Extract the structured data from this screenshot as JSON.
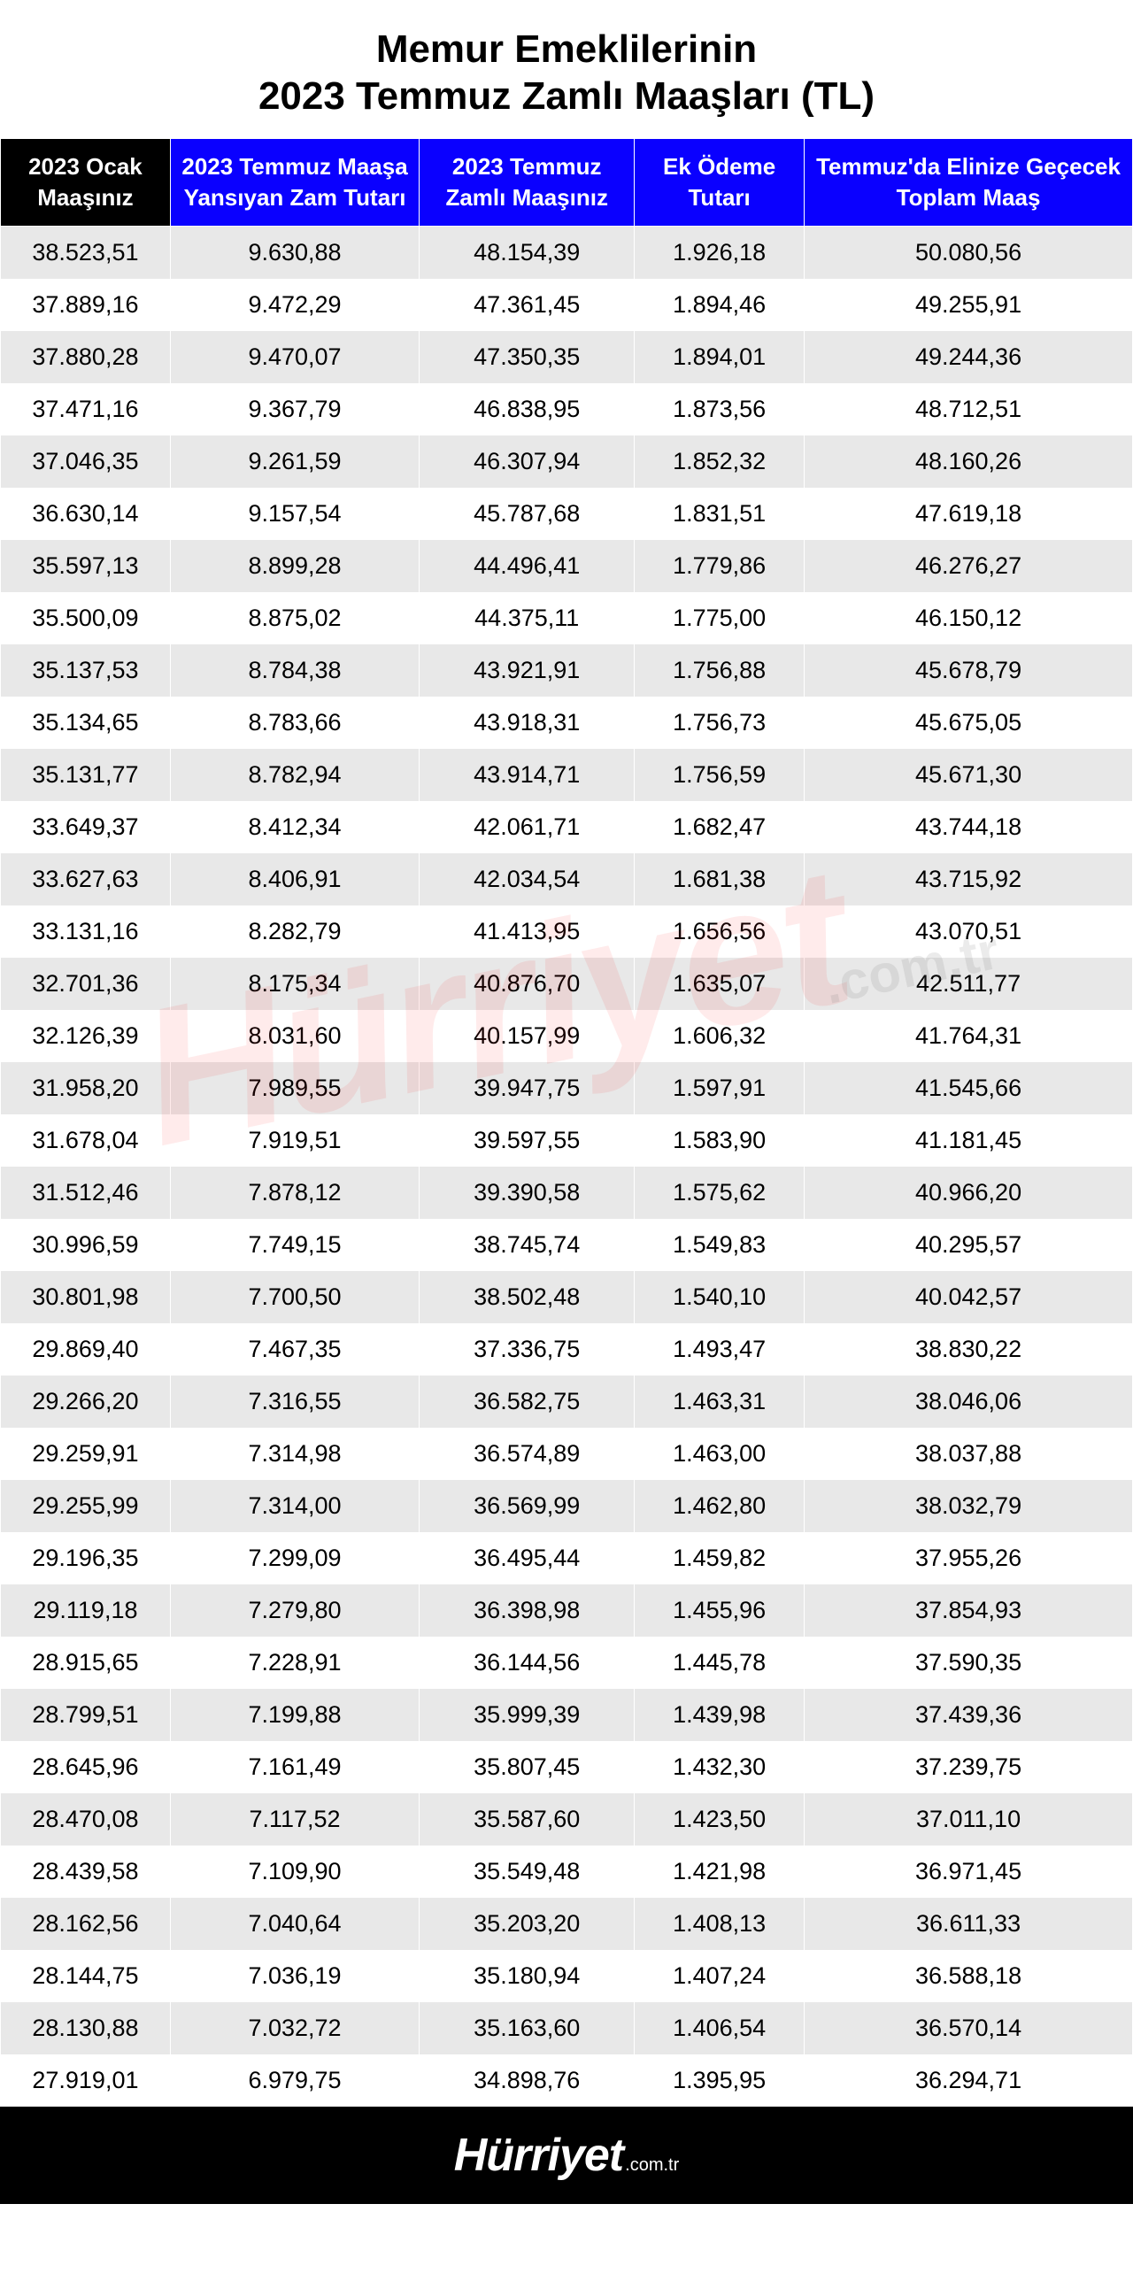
{
  "title_line1": "Memur Emeklilerinin",
  "title_line2": "2023 Temmuz Zamlı Maaşları (TL)",
  "watermark_main": "Hürriyet",
  "watermark_sub": ".com.tr",
  "footer_main": "Hürriyet",
  "footer_sub": ".com.tr",
  "colors": {
    "header_first_bg": "#000000",
    "header_rest_bg": "#0a00ff",
    "header_text": "#ffffff",
    "row_odd_bg": "#e8e8e8",
    "row_even_bg": "#ffffff",
    "text": "#000000",
    "footer_bg": "#000000",
    "footer_text": "#ffffff",
    "watermark": "rgba(255,0,0,0.08)"
  },
  "columns": [
    "2023 Ocak Maaşınız",
    "2023 Temmuz Maaşa Yansıyan Zam Tutarı",
    "2023 Temmuz Zamlı Maaşınız",
    "Ek Ödeme Tutarı",
    "Temmuz'da Elinize Geçecek Toplam Maaş"
  ],
  "rows": [
    [
      "38.523,51",
      "9.630,88",
      "48.154,39",
      "1.926,18",
      "50.080,56"
    ],
    [
      "37.889,16",
      "9.472,29",
      "47.361,45",
      "1.894,46",
      "49.255,91"
    ],
    [
      "37.880,28",
      "9.470,07",
      "47.350,35",
      "1.894,01",
      "49.244,36"
    ],
    [
      "37.471,16",
      "9.367,79",
      "46.838,95",
      "1.873,56",
      "48.712,51"
    ],
    [
      "37.046,35",
      "9.261,59",
      "46.307,94",
      "1.852,32",
      "48.160,26"
    ],
    [
      "36.630,14",
      "9.157,54",
      "45.787,68",
      "1.831,51",
      "47.619,18"
    ],
    [
      "35.597,13",
      "8.899,28",
      "44.496,41",
      "1.779,86",
      "46.276,27"
    ],
    [
      "35.500,09",
      "8.875,02",
      "44.375,11",
      "1.775,00",
      "46.150,12"
    ],
    [
      "35.137,53",
      "8.784,38",
      "43.921,91",
      "1.756,88",
      "45.678,79"
    ],
    [
      "35.134,65",
      "8.783,66",
      "43.918,31",
      "1.756,73",
      "45.675,05"
    ],
    [
      "35.131,77",
      "8.782,94",
      "43.914,71",
      "1.756,59",
      "45.671,30"
    ],
    [
      "33.649,37",
      "8.412,34",
      "42.061,71",
      "1.682,47",
      "43.744,18"
    ],
    [
      "33.627,63",
      "8.406,91",
      "42.034,54",
      "1.681,38",
      "43.715,92"
    ],
    [
      "33.131,16",
      "8.282,79",
      "41.413,95",
      "1.656,56",
      "43.070,51"
    ],
    [
      "32.701,36",
      "8.175,34",
      "40.876,70",
      "1.635,07",
      "42.511,77"
    ],
    [
      "32.126,39",
      "8.031,60",
      "40.157,99",
      "1.606,32",
      "41.764,31"
    ],
    [
      "31.958,20",
      "7.989,55",
      "39.947,75",
      "1.597,91",
      "41.545,66"
    ],
    [
      "31.678,04",
      "7.919,51",
      "39.597,55",
      "1.583,90",
      "41.181,45"
    ],
    [
      "31.512,46",
      "7.878,12",
      "39.390,58",
      "1.575,62",
      "40.966,20"
    ],
    [
      "30.996,59",
      "7.749,15",
      "38.745,74",
      "1.549,83",
      "40.295,57"
    ],
    [
      "30.801,98",
      "7.700,50",
      "38.502,48",
      "1.540,10",
      "40.042,57"
    ],
    [
      "29.869,40",
      "7.467,35",
      "37.336,75",
      "1.493,47",
      "38.830,22"
    ],
    [
      "29.266,20",
      "7.316,55",
      "36.582,75",
      "1.463,31",
      "38.046,06"
    ],
    [
      "29.259,91",
      "7.314,98",
      "36.574,89",
      "1.463,00",
      "38.037,88"
    ],
    [
      "29.255,99",
      "7.314,00",
      "36.569,99",
      "1.462,80",
      "38.032,79"
    ],
    [
      "29.196,35",
      "7.299,09",
      "36.495,44",
      "1.459,82",
      "37.955,26"
    ],
    [
      "29.119,18",
      "7.279,80",
      "36.398,98",
      "1.455,96",
      "37.854,93"
    ],
    [
      "28.915,65",
      "7.228,91",
      "36.144,56",
      "1.445,78",
      "37.590,35"
    ],
    [
      "28.799,51",
      "7.199,88",
      "35.999,39",
      "1.439,98",
      "37.439,36"
    ],
    [
      "28.645,96",
      "7.161,49",
      "35.807,45",
      "1.432,30",
      "37.239,75"
    ],
    [
      "28.470,08",
      "7.117,52",
      "35.587,60",
      "1.423,50",
      "37.011,10"
    ],
    [
      "28.439,58",
      "7.109,90",
      "35.549,48",
      "1.421,98",
      "36.971,45"
    ],
    [
      "28.162,56",
      "7.040,64",
      "35.203,20",
      "1.408,13",
      "36.611,33"
    ],
    [
      "28.144,75",
      "7.036,19",
      "35.180,94",
      "1.407,24",
      "36.588,18"
    ],
    [
      "28.130,88",
      "7.032,72",
      "35.163,60",
      "1.406,54",
      "36.570,14"
    ],
    [
      "27.919,01",
      "6.979,75",
      "34.898,76",
      "1.395,95",
      "36.294,71"
    ]
  ]
}
